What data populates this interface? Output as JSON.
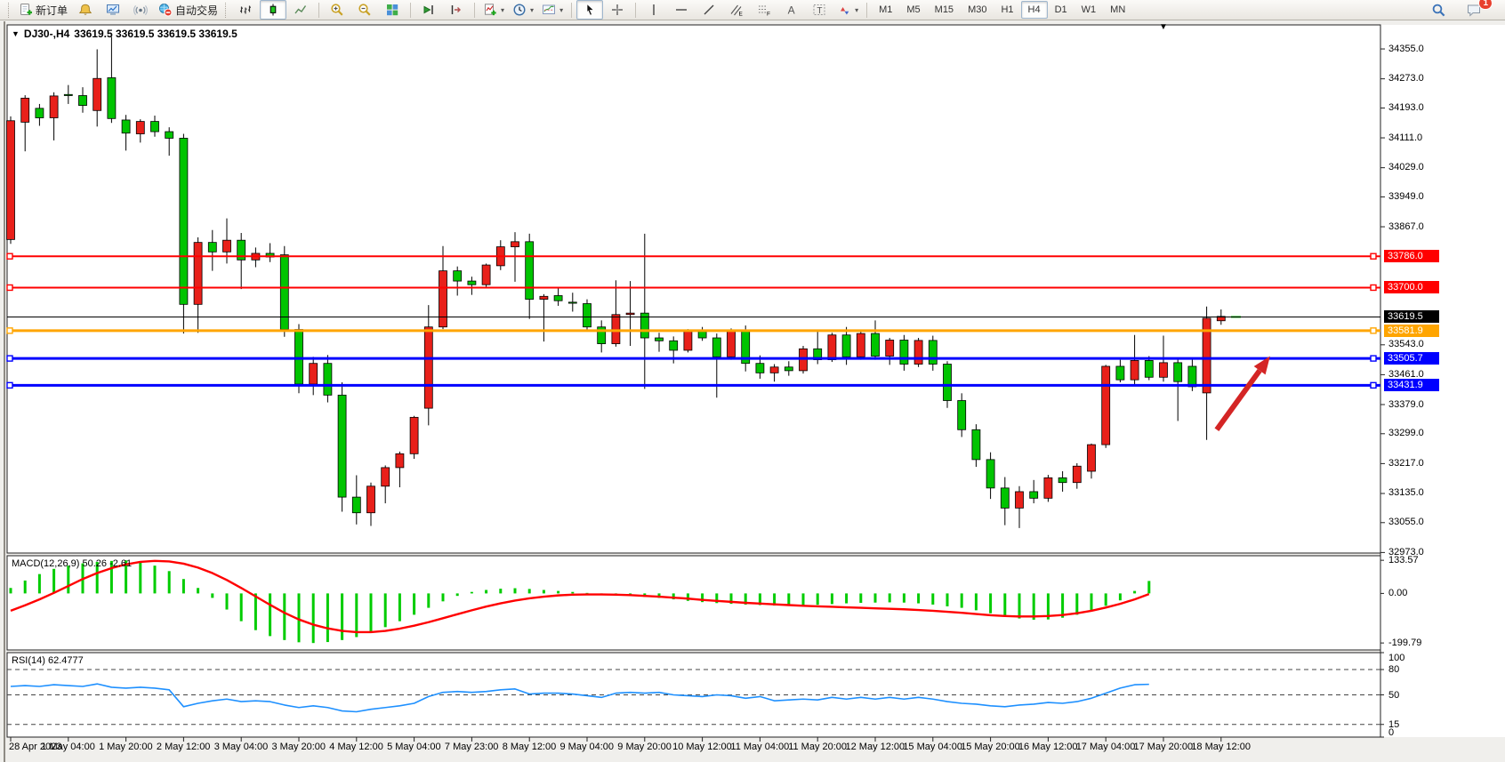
{
  "toolbar": {
    "new_order_label": "新订单",
    "auto_trading_label": "自动交易",
    "timeframes": [
      "M1",
      "M5",
      "M15",
      "M30",
      "H1",
      "H4",
      "D1",
      "W1",
      "MN"
    ],
    "active_timeframe": "H4",
    "notification_badge": "1"
  },
  "chart": {
    "symbol_period": "DJ30-,H4",
    "title_ohlc": "33619.5 33619.5 33619.5 33619.5",
    "macd_label": "MACD(12,26,9)",
    "macd_values": "50.26 -2.61",
    "rsi_label": "RSI(14)",
    "rsi_value": "62.4777"
  },
  "chart_data": {
    "type": "candlestick",
    "symbol": "DJ30-",
    "period": "H4",
    "up_color": "#e8201a",
    "down_color": "#00c400",
    "price_range": [
      32971.5,
      34421.0
    ],
    "price_ticks": [
      34355.0,
      34273.0,
      34193.0,
      34111.0,
      34029.0,
      33949.0,
      33867.0,
      33543.0,
      33461.0,
      33379.0,
      33299.0,
      33217.0,
      33135.0,
      33055.0,
      32973.0
    ],
    "hlines": [
      {
        "price": 33786.0,
        "label": "33786.0",
        "color": "#ff0000",
        "width": 2
      },
      {
        "price": 33700.0,
        "label": "33700.0",
        "color": "#ff0000",
        "width": 2
      },
      {
        "price": 33581.9,
        "label": "33581.9",
        "color": "#ffa500",
        "width": 3
      },
      {
        "price": 33505.7,
        "label": "33505.7",
        "color": "#0000ff",
        "width": 3
      },
      {
        "price": 33431.9,
        "label": "33431.9",
        "color": "#0000ff",
        "width": 3
      }
    ],
    "bid_line": {
      "price": 33619.5,
      "label": "33619.5",
      "color": "#000000"
    },
    "time_labels": [
      {
        "bar": 0,
        "label": "28 Apr 2023"
      },
      {
        "bar": 4,
        "label": "1 May 04:00"
      },
      {
        "bar": 8,
        "label": "1 May 20:00"
      },
      {
        "bar": 12,
        "label": "2 May 12:00"
      },
      {
        "bar": 16,
        "label": "3 May 04:00"
      },
      {
        "bar": 20,
        "label": "3 May 20:00"
      },
      {
        "bar": 24,
        "label": "4 May 12:00"
      },
      {
        "bar": 28,
        "label": "5 May 04:00"
      },
      {
        "bar": 32,
        "label": "7 May 23:00"
      },
      {
        "bar": 36,
        "label": "8 May 12:00"
      },
      {
        "bar": 40,
        "label": "9 May 04:00"
      },
      {
        "bar": 44,
        "label": "9 May 20:00"
      },
      {
        "bar": 48,
        "label": "10 May 12:00"
      },
      {
        "bar": 52,
        "label": "11 May 04:00"
      },
      {
        "bar": 56,
        "label": "11 May 20:00"
      },
      {
        "bar": 60,
        "label": "12 May 12:00"
      },
      {
        "bar": 64,
        "label": "15 May 04:00"
      },
      {
        "bar": 68,
        "label": "15 May 20:00"
      },
      {
        "bar": 72,
        "label": "16 May 12:00"
      },
      {
        "bar": 76,
        "label": "17 May 04:00"
      },
      {
        "bar": 80,
        "label": "17 May 20:00"
      },
      {
        "bar": 84,
        "label": "18 May 12:00"
      }
    ],
    "candles": [
      [
        33832,
        34170,
        33820,
        34158
      ],
      [
        34154,
        34228,
        34074,
        34220
      ],
      [
        34192,
        34204,
        34144,
        34166
      ],
      [
        34166,
        34236,
        34104,
        34226
      ],
      [
        34230,
        34256,
        34204,
        34227
      ],
      [
        34227,
        34250,
        34180,
        34200
      ],
      [
        34186,
        34354,
        34142,
        34274
      ],
      [
        34276,
        34388,
        34152,
        34164
      ],
      [
        34160,
        34174,
        34076,
        34124
      ],
      [
        34122,
        34162,
        34098,
        34156
      ],
      [
        34156,
        34172,
        34114,
        34128
      ],
      [
        34128,
        34140,
        34062,
        34110
      ],
      [
        34110,
        34122,
        33574,
        33654
      ],
      [
        33654,
        33838,
        33576,
        33824
      ],
      [
        33824,
        33858,
        33746,
        33798
      ],
      [
        33798,
        33890,
        33766,
        33830
      ],
      [
        33830,
        33850,
        33696,
        33776
      ],
      [
        33776,
        33810,
        33756,
        33794
      ],
      [
        33794,
        33822,
        33770,
        33784
      ],
      [
        33790,
        33814,
        33565,
        33585
      ],
      [
        33585,
        33600,
        33410,
        33435
      ],
      [
        33435,
        33510,
        33405,
        33492
      ],
      [
        33492,
        33515,
        33385,
        33405
      ],
      [
        33405,
        33440,
        33085,
        33125
      ],
      [
        33125,
        33185,
        33050,
        33082
      ],
      [
        33082,
        33165,
        33046,
        33155
      ],
      [
        33155,
        33212,
        33108,
        33206
      ],
      [
        33206,
        33250,
        33152,
        33244
      ],
      [
        33244,
        33348,
        33230,
        33344
      ],
      [
        33369,
        33652,
        33322,
        33592
      ],
      [
        33592,
        33814,
        33586,
        33746
      ],
      [
        33746,
        33758,
        33678,
        33718
      ],
      [
        33718,
        33730,
        33680,
        33708
      ],
      [
        33708,
        33766,
        33700,
        33762
      ],
      [
        33760,
        33830,
        33748,
        33812
      ],
      [
        33812,
        33852,
        33716,
        33826
      ],
      [
        33826,
        33848,
        33614,
        33668
      ],
      [
        33668,
        33682,
        33552,
        33676
      ],
      [
        33678,
        33700,
        33650,
        33664
      ],
      [
        33660,
        33686,
        33634,
        33658
      ],
      [
        33656,
        33668,
        33584,
        33592
      ],
      [
        33592,
        33610,
        33522,
        33546
      ],
      [
        33546,
        33720,
        33538,
        33626
      ],
      [
        33626,
        33718,
        33540,
        33630
      ],
      [
        33630,
        33848,
        33422,
        33562
      ],
      [
        33562,
        33576,
        33524,
        33554
      ],
      [
        33554,
        33566,
        33492,
        33528
      ],
      [
        33528,
        33586,
        33522,
        33580
      ],
      [
        33580,
        33592,
        33554,
        33562
      ],
      [
        33562,
        33574,
        33398,
        33510
      ],
      [
        33510,
        33588,
        33502,
        33584
      ],
      [
        33584,
        33596,
        33470,
        33492
      ],
      [
        33492,
        33514,
        33450,
        33466
      ],
      [
        33466,
        33490,
        33442,
        33482
      ],
      [
        33482,
        33498,
        33458,
        33472
      ],
      [
        33472,
        33540,
        33464,
        33532
      ],
      [
        33532,
        33580,
        33490,
        33502
      ],
      [
        33502,
        33576,
        33496,
        33570
      ],
      [
        33570,
        33592,
        33488,
        33510
      ],
      [
        33510,
        33582,
        33502,
        33574
      ],
      [
        33574,
        33610,
        33502,
        33512
      ],
      [
        33512,
        33562,
        33488,
        33556
      ],
      [
        33556,
        33570,
        33472,
        33490
      ],
      [
        33490,
        33562,
        33482,
        33555
      ],
      [
        33555,
        33568,
        33472,
        33490
      ],
      [
        33490,
        33498,
        33370,
        33390
      ],
      [
        33390,
        33410,
        33290,
        33310
      ],
      [
        33310,
        33325,
        33208,
        33228
      ],
      [
        33228,
        33248,
        33120,
        33150
      ],
      [
        33150,
        33180,
        33048,
        33095
      ],
      [
        33095,
        33155,
        33040,
        33140
      ],
      [
        33140,
        33172,
        33108,
        33122
      ],
      [
        33122,
        33186,
        33112,
        33178
      ],
      [
        33178,
        33196,
        33140,
        33165
      ],
      [
        33165,
        33218,
        33148,
        33210
      ],
      [
        33196,
        33272,
        33176,
        33269
      ],
      [
        33269,
        33488,
        33260,
        33484
      ],
      [
        33484,
        33502,
        33440,
        33447
      ],
      [
        33447,
        33570,
        33434,
        33500
      ],
      [
        33500,
        33512,
        33446,
        33454
      ],
      [
        33454,
        33568,
        33442,
        33494
      ],
      [
        33494,
        33506,
        33334,
        33442
      ],
      [
        33484,
        33508,
        33416,
        33428
      ],
      [
        33411,
        33648,
        33282,
        33616
      ],
      [
        33609,
        33640,
        33598,
        33621
      ],
      [
        33619.5,
        33619.5,
        33619.5,
        33619.5
      ]
    ],
    "macd": {
      "name": "MACD(12,26,9)",
      "main_value": 50.26,
      "signal_value": -2.61,
      "ylim": [
        -228,
        152
      ],
      "axis_labels": [
        {
          "v": 133.57,
          "label": "133.57"
        },
        {
          "v": 0,
          "label": "0.00"
        },
        {
          "v": -199.79,
          "label": "-199.79"
        }
      ],
      "hist_color": "#00cc00",
      "signal_color": "#ff0000",
      "hist": [
        22,
        52,
        78,
        99,
        112,
        121,
        127,
        131,
        133,
        126,
        112,
        90,
        58,
        22,
        -18,
        -65,
        -112,
        -148,
        -172,
        -188,
        -197,
        -200,
        -196,
        -188,
        -176,
        -158,
        -136,
        -112,
        -86,
        -58,
        -32,
        -10,
        6,
        14,
        19,
        21,
        18,
        14,
        10,
        6,
        2,
        -2,
        -6,
        -10,
        -14,
        -18,
        -24,
        -30,
        -35,
        -39,
        -42,
        -45,
        -47,
        -49,
        -50,
        -49,
        -46,
        -43,
        -40,
        -38,
        -37,
        -36,
        -37,
        -40,
        -45,
        -52,
        -58,
        -68,
        -80,
        -92,
        -101,
        -106,
        -105,
        -98,
        -86,
        -70,
        -50,
        -28,
        10,
        50.26
      ],
      "signal": [
        -70,
        -48,
        -24,
        2,
        30,
        58,
        82,
        102,
        117,
        127,
        131,
        129,
        120,
        104,
        82,
        54,
        22,
        -12,
        -46,
        -78,
        -105,
        -126,
        -141,
        -151,
        -156,
        -156,
        -151,
        -142,
        -130,
        -116,
        -100,
        -84,
        -68,
        -53,
        -40,
        -29,
        -20,
        -13,
        -8,
        -5,
        -4,
        -4,
        -5,
        -7,
        -10,
        -13,
        -17,
        -21,
        -26,
        -30,
        -34,
        -38,
        -41,
        -44,
        -47,
        -50,
        -52,
        -54,
        -56,
        -58,
        -60,
        -62,
        -64,
        -67,
        -70,
        -74,
        -78,
        -83,
        -88,
        -91,
        -93,
        -93,
        -91,
        -87,
        -80,
        -70,
        -57,
        -42,
        -24,
        -2.61
      ]
    },
    "rsi": {
      "name": "RSI(14)",
      "value": 62.4777,
      "ylim": [
        0,
        100
      ],
      "levels": [
        80,
        50,
        15
      ],
      "axis_labels": [
        {
          "v": 100,
          "label": "100"
        },
        {
          "v": 80,
          "label": "80"
        },
        {
          "v": 50,
          "label": "50"
        },
        {
          "v": 15,
          "label": "15"
        },
        {
          "v": 0,
          "label": "0"
        }
      ],
      "line_color": "#1e90ff",
      "values": [
        60,
        61,
        60,
        62,
        61,
        60,
        63,
        59,
        58,
        59,
        58,
        56,
        36,
        40,
        43,
        45,
        42,
        43,
        42,
        38,
        35,
        37,
        35,
        31,
        30,
        33,
        35,
        37,
        40,
        48,
        53,
        54,
        53,
        54,
        56,
        57,
        51,
        52,
        52,
        51,
        49,
        47,
        52,
        53,
        52,
        53,
        50,
        49,
        48,
        50,
        49,
        46,
        48,
        43,
        44,
        45,
        44,
        47,
        45,
        47,
        45,
        47,
        45,
        47,
        45,
        42,
        40,
        39,
        37,
        36,
        38,
        39,
        41,
        40,
        42,
        46,
        52,
        58,
        62,
        62.5
      ],
      "grid": "dashed"
    },
    "annotations": [
      {
        "type": "arrow",
        "color": "#d42525",
        "from": {
          "bar": 83.7,
          "price": 33310
        },
        "to": {
          "bar": 87.4,
          "price": 33512
        }
      }
    ]
  }
}
